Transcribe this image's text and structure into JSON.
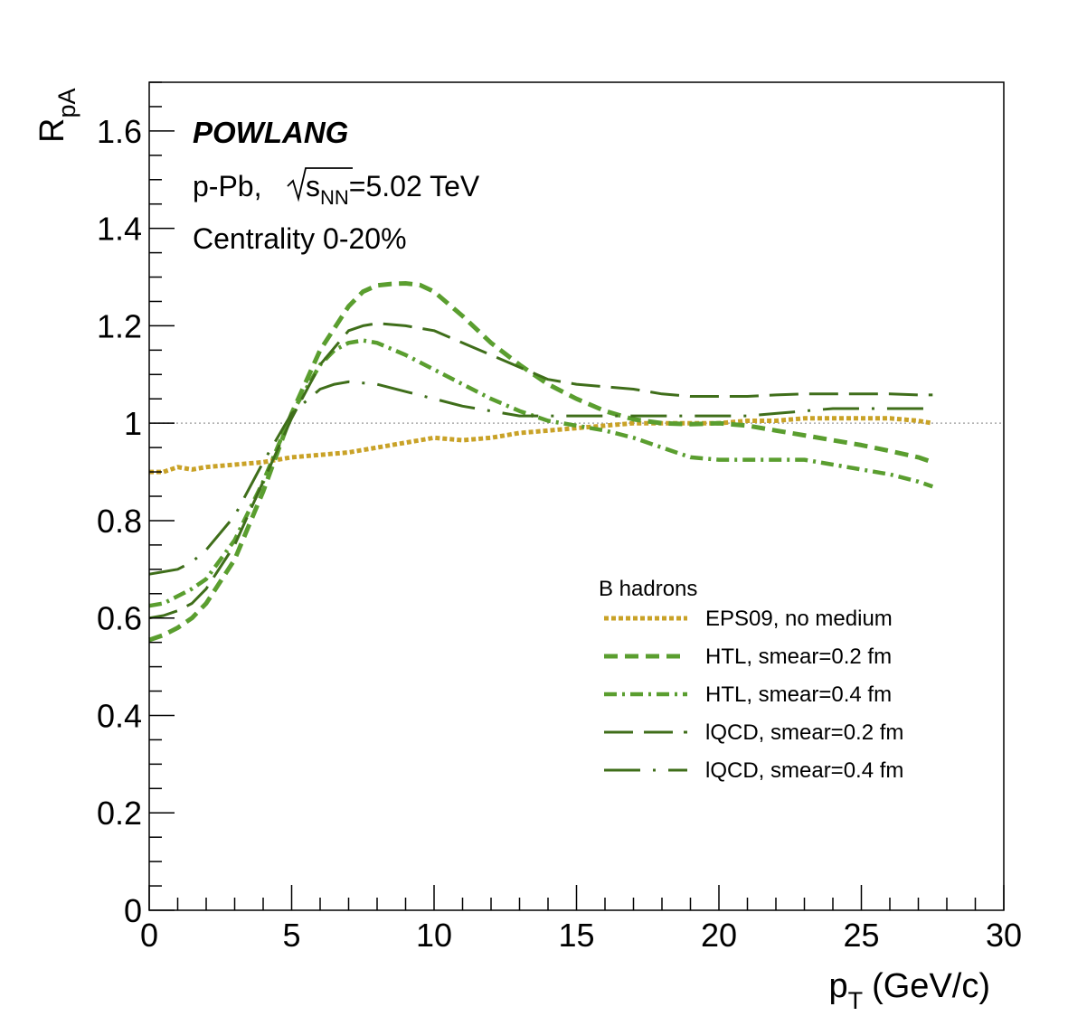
{
  "chart_data": {
    "type": "line",
    "annotations": {
      "model": "POWLANG",
      "system_prefix": "p-Pb,",
      "energy_s": "s",
      "energy_sub": "NN",
      "energy_value": "=5.02 TeV",
      "centrality": "Centrality 0-20%"
    },
    "xlabel_main": "p",
    "xlabel_sub": "T",
    "xlabel_unit": "(GeV/c)",
    "ylabel_main": "R",
    "ylabel_sub": "pA",
    "xlim": [
      0,
      30
    ],
    "ylim": [
      0,
      1.7
    ],
    "x_ticks": [
      0,
      5,
      10,
      15,
      20,
      25,
      30
    ],
    "x_tick_labels": [
      "0",
      "5",
      "10",
      "15",
      "20",
      "25",
      "30"
    ],
    "y_ticks": [
      0,
      0.2,
      0.4,
      0.6,
      0.8,
      1,
      1.2,
      1.4,
      1.6
    ],
    "y_tick_labels": [
      "0",
      "0.2",
      "0.4",
      "0.6",
      "0.8",
      "1",
      "1.2",
      "1.4",
      "1.6"
    ],
    "reference_line_y": 1,
    "legend_title": "B hadrons",
    "legend_placement": "center-right",
    "series": [
      {
        "name": " EPS09, no medium",
        "color": "#c9a227",
        "style": "dotted",
        "x": [
          0,
          0.5,
          1,
          1.5,
          2,
          3,
          4,
          5,
          6,
          7,
          8,
          9,
          10,
          11,
          12,
          13,
          14,
          15,
          16,
          17,
          18,
          19,
          20,
          21,
          22,
          23,
          24,
          25,
          26,
          27,
          27.5
        ],
        "y": [
          0.9,
          0.9,
          0.91,
          0.905,
          0.91,
          0.915,
          0.92,
          0.93,
          0.935,
          0.94,
          0.95,
          0.96,
          0.97,
          0.965,
          0.97,
          0.98,
          0.985,
          0.99,
          0.995,
          1.0,
          1.0,
          1.0,
          1.0,
          1.005,
          1.005,
          1.01,
          1.01,
          1.01,
          1.01,
          1.005,
          1.0
        ]
      },
      {
        "name": "HTL, smear=0.2 fm",
        "color": "#5a9e2f",
        "style": "dashed",
        "x": [
          0,
          0.5,
          1,
          1.5,
          2,
          3,
          4,
          5,
          6,
          7,
          7.5,
          8,
          8.5,
          9,
          9.5,
          10,
          11,
          12,
          13,
          14,
          15,
          16,
          17,
          18,
          19,
          20,
          21,
          22,
          23,
          24,
          25,
          26,
          27,
          27.5
        ],
        "y": [
          0.555,
          0.565,
          0.58,
          0.6,
          0.63,
          0.72,
          0.86,
          1.02,
          1.15,
          1.24,
          1.27,
          1.283,
          1.286,
          1.287,
          1.284,
          1.27,
          1.22,
          1.165,
          1.12,
          1.08,
          1.05,
          1.025,
          1.008,
          1.0,
          0.998,
          1.0,
          0.995,
          0.985,
          0.975,
          0.965,
          0.955,
          0.943,
          0.93,
          0.92
        ]
      },
      {
        "name": "HTL, smear=0.4 fm",
        "color": "#5a9e2f",
        "style": "dashdot",
        "x": [
          0,
          0.5,
          1,
          1.5,
          2,
          3,
          4,
          5,
          6,
          6.5,
          7,
          7.5,
          8,
          9,
          10,
          11,
          12,
          13,
          14,
          15,
          16,
          17,
          18,
          19,
          20,
          21,
          22,
          23,
          24,
          25,
          26,
          27,
          27.5
        ],
        "y": [
          0.625,
          0.63,
          0.645,
          0.66,
          0.68,
          0.76,
          0.88,
          1.02,
          1.12,
          1.15,
          1.165,
          1.17,
          1.165,
          1.14,
          1.11,
          1.08,
          1.05,
          1.025,
          1.005,
          0.995,
          0.985,
          0.97,
          0.95,
          0.93,
          0.925,
          0.925,
          0.925,
          0.925,
          0.915,
          0.905,
          0.895,
          0.88,
          0.87
        ]
      },
      {
        "name": "lQCD, smear=0.2 fm",
        "color": "#3f6e1a",
        "style": "longdash",
        "x": [
          0,
          0.5,
          1,
          1.5,
          2,
          3,
          4,
          5,
          6,
          7,
          7.5,
          8,
          9,
          10,
          11,
          12,
          13,
          14,
          15,
          16,
          17,
          18,
          19,
          20,
          21,
          22,
          23,
          24,
          25,
          26,
          27,
          27.5
        ],
        "y": [
          0.6,
          0.605,
          0.615,
          0.63,
          0.66,
          0.75,
          0.88,
          1.01,
          1.12,
          1.19,
          1.2,
          1.205,
          1.2,
          1.19,
          1.165,
          1.14,
          1.115,
          1.09,
          1.08,
          1.075,
          1.07,
          1.06,
          1.055,
          1.055,
          1.055,
          1.058,
          1.06,
          1.06,
          1.06,
          1.06,
          1.058,
          1.058
        ]
      },
      {
        "name": "lQCD, smear=0.4 fm",
        "color": "#3f6e1a",
        "style": "longdashdot",
        "x": [
          0,
          0.5,
          1,
          1.5,
          2,
          3,
          4,
          5,
          6,
          6.5,
          7,
          8,
          9,
          10,
          11,
          12,
          13,
          14,
          15,
          16,
          17,
          18,
          19,
          20,
          21,
          22,
          23,
          24,
          25,
          26,
          27,
          27.5
        ],
        "y": [
          0.69,
          0.695,
          0.7,
          0.715,
          0.74,
          0.81,
          0.92,
          1.02,
          1.07,
          1.08,
          1.085,
          1.08,
          1.065,
          1.05,
          1.035,
          1.025,
          1.015,
          1.015,
          1.015,
          1.015,
          1.015,
          1.015,
          1.015,
          1.015,
          1.015,
          1.02,
          1.025,
          1.03,
          1.03,
          1.03,
          1.03,
          1.03
        ]
      }
    ]
  }
}
